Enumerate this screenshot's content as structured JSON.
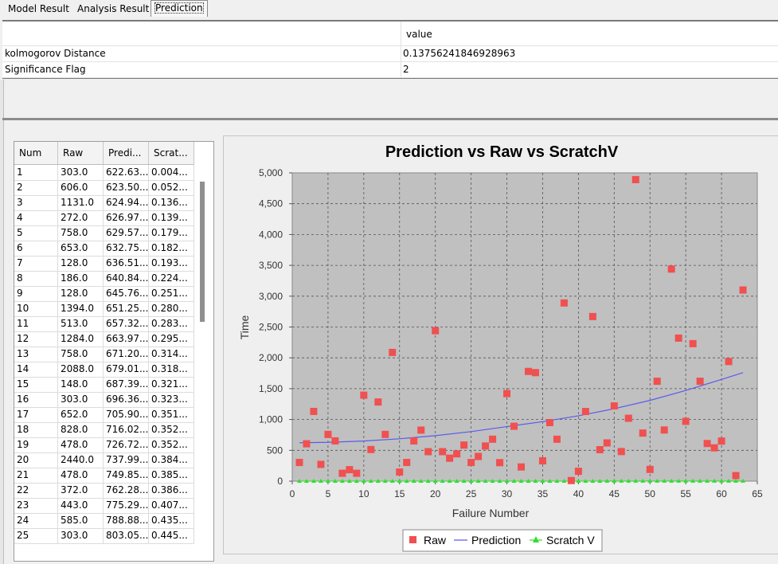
{
  "tabs": [
    {
      "label": "Model Result",
      "active": false
    },
    {
      "label": "Analysis Result",
      "active": false
    },
    {
      "label": "Prediction",
      "active": true
    }
  ],
  "properties": {
    "header_value": "value",
    "rows": [
      {
        "name": "kolmogorov Distance",
        "value": "0.13756241846928963"
      },
      {
        "name": "Significance Flag",
        "value": "2"
      }
    ]
  },
  "data_table": {
    "headers": [
      "Num",
      "Raw",
      "Predi...",
      "Scrat..."
    ],
    "rows": [
      [
        "1",
        "303.0",
        "622.63...",
        "0.004..."
      ],
      [
        "2",
        "606.0",
        "623.50...",
        "0.052..."
      ],
      [
        "3",
        "1131.0",
        "624.94...",
        "0.136..."
      ],
      [
        "4",
        "272.0",
        "626.97...",
        "0.139..."
      ],
      [
        "5",
        "758.0",
        "629.57...",
        "0.179..."
      ],
      [
        "6",
        "653.0",
        "632.75...",
        "0.182..."
      ],
      [
        "7",
        "128.0",
        "636.51...",
        "0.193..."
      ],
      [
        "8",
        "186.0",
        "640.84...",
        "0.224..."
      ],
      [
        "9",
        "128.0",
        "645.76...",
        "0.251..."
      ],
      [
        "10",
        "1394.0",
        "651.25...",
        "0.280..."
      ],
      [
        "11",
        "513.0",
        "657.32...",
        "0.283..."
      ],
      [
        "12",
        "1284.0",
        "663.97...",
        "0.295..."
      ],
      [
        "13",
        "758.0",
        "671.20...",
        "0.314..."
      ],
      [
        "14",
        "2088.0",
        "679.01...",
        "0.318..."
      ],
      [
        "15",
        "148.0",
        "687.39...",
        "0.321..."
      ],
      [
        "16",
        "303.0",
        "696.36...",
        "0.323..."
      ],
      [
        "17",
        "652.0",
        "705.90...",
        "0.351..."
      ],
      [
        "18",
        "828.0",
        "716.02...",
        "0.352..."
      ],
      [
        "19",
        "478.0",
        "726.72...",
        "0.352..."
      ],
      [
        "20",
        "2440.0",
        "737.99...",
        "0.384..."
      ],
      [
        "21",
        "478.0",
        "749.85...",
        "0.385..."
      ],
      [
        "22",
        "372.0",
        "762.28...",
        "0.386..."
      ],
      [
        "23",
        "443.0",
        "775.29...",
        "0.407..."
      ],
      [
        "24",
        "585.0",
        "788.88...",
        "0.435..."
      ],
      [
        "25",
        "303.0",
        "803.05...",
        "0.445..."
      ]
    ]
  },
  "chart_data": {
    "type": "scatter",
    "title": "Prediction vs Raw vs ScratchV",
    "xlabel": "Failure Number",
    "ylabel": "Time",
    "xlim": [
      0,
      65
    ],
    "ylim": [
      0,
      5000
    ],
    "x_ticks": [
      "0",
      "5",
      "10",
      "15",
      "20",
      "25",
      "30",
      "35",
      "40",
      "45",
      "50",
      "55",
      "60",
      "65"
    ],
    "y_ticks": [
      "0",
      "500",
      "1,000",
      "1,500",
      "2,000",
      "2,500",
      "3,000",
      "3,500",
      "4,000",
      "4,500",
      "5,000"
    ],
    "grid": true,
    "legend_position": "bottom",
    "plot_background": "#c0c0c0",
    "series": [
      {
        "name": "Raw",
        "color": "#f05050",
        "marker": "square",
        "x": [
          1,
          2,
          3,
          4,
          5,
          6,
          7,
          8,
          9,
          10,
          11,
          12,
          13,
          14,
          15,
          16,
          17,
          18,
          19,
          20,
          21,
          22,
          23,
          24,
          25,
          26,
          27,
          28,
          29,
          30,
          31,
          32,
          33,
          34,
          35,
          36,
          37,
          38,
          39,
          40,
          41,
          42,
          43,
          44,
          45,
          46,
          47,
          48,
          49,
          50,
          51,
          52,
          53,
          54,
          55,
          56,
          57,
          58,
          59,
          60,
          61,
          62,
          63
        ],
        "values": [
          303,
          606,
          1131,
          272,
          758,
          653,
          128,
          186,
          128,
          1394,
          513,
          1284,
          758,
          2088,
          148,
          303,
          652,
          828,
          478,
          2440,
          478,
          372,
          443,
          585,
          303,
          400,
          570,
          680,
          300,
          1420,
          890,
          230,
          1780,
          1760,
          330,
          950,
          680,
          2890,
          10,
          160,
          1130,
          2670,
          510,
          620,
          1220,
          480,
          1020,
          4890,
          780,
          190,
          1620,
          830,
          3440,
          2320,
          970,
          2230,
          1620,
          610,
          540,
          650,
          1940,
          90,
          3100
        ]
      },
      {
        "name": "Prediction",
        "color": "#5a5af0",
        "marker": "line",
        "x": [
          1,
          5,
          10,
          15,
          20,
          25,
          30,
          35,
          40,
          45,
          50,
          55,
          60,
          63
        ],
        "values": [
          622.6,
          629.6,
          651.3,
          687.4,
          738.0,
          803.1,
          885,
          965,
          1060,
          1175,
          1310,
          1470,
          1650,
          1760
        ]
      },
      {
        "name": "Scratch V",
        "color": "#33dd33",
        "marker": "triangle",
        "x": [
          1,
          2,
          3,
          4,
          5,
          6,
          7,
          8,
          9,
          10,
          11,
          12,
          13,
          14,
          15,
          16,
          17,
          18,
          19,
          20,
          21,
          22,
          23,
          24,
          25,
          26,
          27,
          28,
          29,
          30,
          31,
          32,
          33,
          34,
          35,
          36,
          37,
          38,
          39,
          40,
          41,
          42,
          43,
          44,
          45,
          46,
          47,
          48,
          49,
          50,
          51,
          52,
          53,
          54,
          55,
          56,
          57,
          58,
          59,
          60,
          61,
          62,
          63
        ],
        "values": [
          0.004,
          0.052,
          0.136,
          0.139,
          0.179,
          0.182,
          0.193,
          0.224,
          0.251,
          0.28,
          0.283,
          0.295,
          0.314,
          0.318,
          0.321,
          0.323,
          0.351,
          0.352,
          0.352,
          0.384,
          0.385,
          0.386,
          0.407,
          0.435,
          0.445,
          0.46,
          0.48,
          0.5,
          0.52,
          0.54,
          0.56,
          0.58,
          0.6,
          0.62,
          0.64,
          0.66,
          0.68,
          0.7,
          0.72,
          0.74,
          0.76,
          0.78,
          0.8,
          0.82,
          0.84,
          0.86,
          0.88,
          0.9,
          0.91,
          0.92,
          0.93,
          0.94,
          0.95,
          0.96,
          0.97,
          0.975,
          0.98,
          0.985,
          0.99,
          0.993,
          0.996,
          0.998,
          1.0
        ]
      }
    ]
  }
}
